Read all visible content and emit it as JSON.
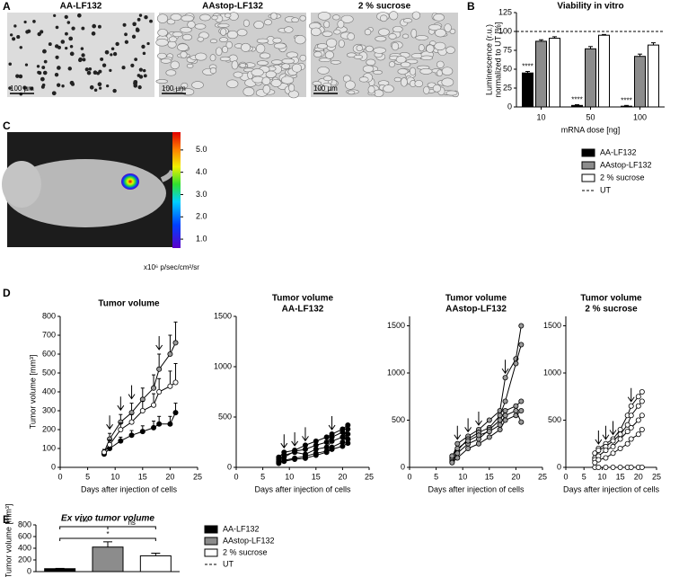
{
  "panel_labels": [
    "A",
    "B",
    "C",
    "D",
    "E"
  ],
  "micrographs": {
    "labels": [
      "AA-LF132",
      "AAstop-LF132",
      "2 % sucrose"
    ],
    "scale_bar": "100 µm"
  },
  "bioluminescence": {
    "colorbar_lim": [
      0.6,
      5.8
    ],
    "colorbar_ticks": [
      {
        "value": 1,
        "label": "1.0"
      },
      {
        "value": 2,
        "label": "2.0"
      },
      {
        "value": 3,
        "label": "3.0"
      },
      {
        "value": 4,
        "label": "4.0"
      },
      {
        "value": 5,
        "label": "5.0"
      }
    ],
    "colorbar_label": "x10⁶ p/sec/cm²/sr"
  },
  "chart_data": [
    {
      "type": "bar",
      "title": "Viability in vitro",
      "categories": [
        "10",
        "50",
        "100"
      ],
      "xlabel": "mRNA dose [ng]",
      "ylabel": [
        "Luminescence (r.u.)",
        "normalized to UT [%]"
      ],
      "ylim": [
        0,
        125
      ],
      "yticks": [
        0,
        25,
        50,
        75,
        100,
        125
      ],
      "series": [
        {
          "name": "AA-LF132",
          "color": "#000000",
          "values": [
            45,
            2,
            1
          ],
          "errors": [
            2,
            1,
            1
          ]
        },
        {
          "name": "AAstop-LF132",
          "color": "#8c8c8c",
          "values": [
            87,
            77,
            67
          ],
          "errors": [
            2,
            3,
            3
          ]
        },
        {
          "name": "2 % sucrose",
          "color": "#ffffff",
          "values": [
            91,
            95,
            82
          ],
          "errors": [
            2,
            1,
            3
          ]
        }
      ],
      "significance": [
        "****",
        "****",
        "****"
      ],
      "reference_line": {
        "name": "UT",
        "value": 100
      }
    },
    {
      "type": "line",
      "title": "Tumor volume",
      "xlabel": "Days after injection of cells",
      "ylabel": "Tumor volume [mm³]",
      "x": [
        8,
        9,
        11,
        13,
        15,
        17,
        18,
        20,
        21
      ],
      "xlim": [
        0,
        25
      ],
      "xticks": [
        0,
        5,
        10,
        15,
        20,
        25
      ],
      "ylim": [
        0,
        800
      ],
      "yticks": [
        0,
        100,
        200,
        300,
        400,
        500,
        600,
        700,
        800
      ],
      "arrow_x": [
        9,
        11,
        13,
        18
      ],
      "series": [
        {
          "color": "#000000",
          "values": [
            70,
            100,
            140,
            170,
            190,
            210,
            230,
            230,
            290
          ],
          "errors": [
            10,
            15,
            20,
            25,
            30,
            35,
            40,
            40,
            50
          ]
        },
        {
          "color": "#9a9a9a",
          "values": [
            80,
            150,
            240,
            290,
            360,
            420,
            520,
            600,
            660
          ],
          "errors": [
            15,
            30,
            40,
            50,
            60,
            70,
            80,
            100,
            110
          ]
        },
        {
          "color": "#ffffff",
          "values": [
            80,
            120,
            200,
            240,
            300,
            330,
            400,
            430,
            450
          ],
          "errors": [
            15,
            25,
            35,
            40,
            50,
            60,
            70,
            80,
            100
          ]
        }
      ]
    },
    {
      "type": "line",
      "title": "Tumor volume",
      "subtitle": "AA-LF132",
      "xlabel": "Days after injection of cells",
      "x": [
        8,
        9,
        11,
        13,
        15,
        17,
        18,
        20,
        21
      ],
      "xlim": [
        0,
        25
      ],
      "xticks": [
        0,
        5,
        10,
        15,
        20,
        25
      ],
      "ylim": [
        0,
        1500
      ],
      "yticks": [
        0,
        500,
        1000,
        1500
      ],
      "arrow_x": [
        9,
        11,
        13,
        18
      ],
      "series": [
        {
          "color": "#000000",
          "values": [
            60,
            120,
            150,
            130,
            180,
            200,
            260,
            300,
            380
          ]
        },
        {
          "color": "#000000",
          "values": [
            80,
            100,
            160,
            180,
            220,
            250,
            300,
            350,
            280
          ]
        },
        {
          "color": "#000000",
          "values": [
            40,
            70,
            90,
            110,
            140,
            160,
            200,
            250,
            330
          ]
        },
        {
          "color": "#000000",
          "values": [
            100,
            150,
            170,
            220,
            260,
            300,
            330,
            380,
            420
          ]
        },
        {
          "color": "#000000",
          "values": [
            50,
            60,
            80,
            90,
            120,
            150,
            180,
            210,
            240
          ]
        }
      ]
    },
    {
      "type": "line",
      "title": "Tumor volume",
      "subtitle": "AAstop-LF132",
      "xlabel": "Days after injection of cells",
      "x": [
        8,
        9,
        11,
        13,
        15,
        17,
        18,
        20,
        21
      ],
      "xlim": [
        0,
        25
      ],
      "xticks": [
        0,
        5,
        10,
        15,
        20,
        25
      ],
      "ylim": [
        0,
        1600
      ],
      "yticks": [
        0,
        500,
        1000,
        1500
      ],
      "arrow_x": [
        9,
        11,
        13,
        18
      ],
      "series": [
        {
          "color": "#9a9a9a",
          "values": [
            100,
            250,
            330,
            400,
            500,
            600,
            950,
            1150,
            1500
          ]
        },
        {
          "color": "#9a9a9a",
          "values": [
            80,
            180,
            300,
            370,
            420,
            550,
            700,
            1100,
            1300
          ]
        },
        {
          "color": "#9a9a9a",
          "values": [
            60,
            150,
            250,
            300,
            400,
            500,
            600,
            650,
            700
          ]
        },
        {
          "color": "#9a9a9a",
          "values": [
            50,
            100,
            200,
            250,
            320,
            400,
            500,
            550,
            600
          ]
        },
        {
          "color": "#9a9a9a",
          "values": [
            120,
            200,
            280,
            340,
            380,
            450,
            550,
            600,
            480
          ]
        }
      ]
    },
    {
      "type": "line",
      "title": "Tumor volume",
      "subtitle": "2 % sucrose",
      "xlabel": "Days after injection of cells",
      "x": [
        8,
        9,
        11,
        13,
        15,
        17,
        18,
        20,
        21
      ],
      "xlim": [
        0,
        25
      ],
      "xticks": [
        0,
        5,
        10,
        15,
        20,
        25
      ],
      "ylim": [
        0,
        1600
      ],
      "yticks": [
        0,
        500,
        1000,
        1500
      ],
      "arrow_x": [
        9,
        11,
        13,
        18
      ],
      "series": [
        {
          "color": "#ffffff",
          "values": [
            150,
            200,
            250,
            300,
            400,
            550,
            650,
            750,
            800
          ]
        },
        {
          "color": "#ffffff",
          "values": [
            100,
            180,
            220,
            280,
            350,
            450,
            550,
            650,
            700
          ]
        },
        {
          "color": "#ffffff",
          "values": [
            80,
            120,
            180,
            220,
            300,
            380,
            420,
            500,
            550
          ]
        },
        {
          "color": "#ffffff",
          "values": [
            50,
            80,
            100,
            150,
            200,
            250,
            300,
            350,
            400
          ]
        },
        {
          "color": "#ffffff",
          "values": [
            0,
            0,
            0,
            0,
            0,
            0,
            0,
            0,
            0
          ]
        }
      ]
    },
    {
      "type": "bar",
      "title": "Ex vivo tumor volume",
      "ylabel": "Tumor volume [mm³]",
      "ylim": [
        0,
        800
      ],
      "yticks": [
        0,
        200,
        400,
        600,
        800
      ],
      "series": [
        {
          "name": "AA-LF132",
          "color": "#000000",
          "values": [
            50
          ],
          "errors": [
            5
          ]
        },
        {
          "name": "AAstop-LF132",
          "color": "#8c8c8c",
          "values": [
            420
          ],
          "errors": [
            90
          ]
        },
        {
          "name": "2 % sucrose",
          "color": "#ffffff",
          "values": [
            270
          ],
          "errors": [
            45
          ]
        }
      ],
      "significance": [
        "***",
        "ns",
        "*"
      ],
      "reference_line": {
        "name": "UT"
      }
    }
  ]
}
